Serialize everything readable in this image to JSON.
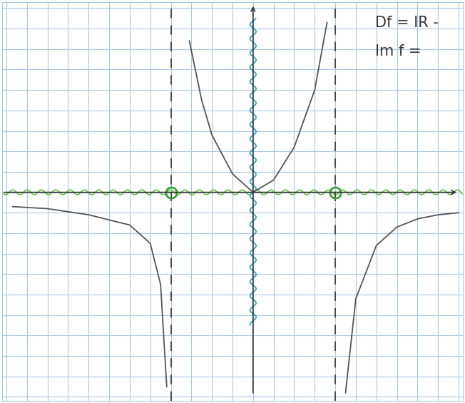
{
  "chart_data": {
    "type": "line",
    "annotations": [
      "Df = IR -",
      "Im f ="
    ],
    "x": [
      -11.7,
      -10,
      -8,
      -6,
      -5,
      -4.5,
      -4.2,
      -4,
      -3.1,
      -2.5,
      -2,
      -1,
      0,
      1,
      2,
      3,
      3.6,
      4,
      4.5,
      5,
      6,
      7,
      8,
      9,
      10
    ],
    "values": [
      -0.7,
      -0.8,
      -1.1,
      -1.6,
      -2.5,
      -4.5,
      -9.5,
      null,
      7.4,
      4.5,
      2.8,
      0.9,
      0,
      0.6,
      2.2,
      5,
      8.3,
      null,
      -9.8,
      -5.2,
      -2.6,
      -1.7,
      -1.3,
      -1.1,
      -1.0
    ],
    "color": "#555555",
    "vertical_asymptotes": [
      -4,
      4
    ],
    "excluded_points": [
      -4,
      4
    ],
    "xlim": [
      -12.2,
      10.2
    ],
    "ylim": [
      -10.2,
      9.3
    ],
    "xticks": [
      -12,
      -11,
      -10,
      -9,
      -8,
      -7,
      -6,
      -5,
      -4,
      -3,
      -2,
      -1,
      0,
      1,
      2,
      3,
      4,
      5,
      6,
      7,
      8,
      9,
      10
    ],
    "yticks": [
      -10,
      -9,
      -8,
      -7,
      -6,
      -5,
      -4,
      -3,
      -2,
      -1,
      0,
      1,
      2,
      3,
      4,
      5,
      6,
      7,
      8,
      9
    ],
    "grid": true,
    "tick_labels": false
  }
}
